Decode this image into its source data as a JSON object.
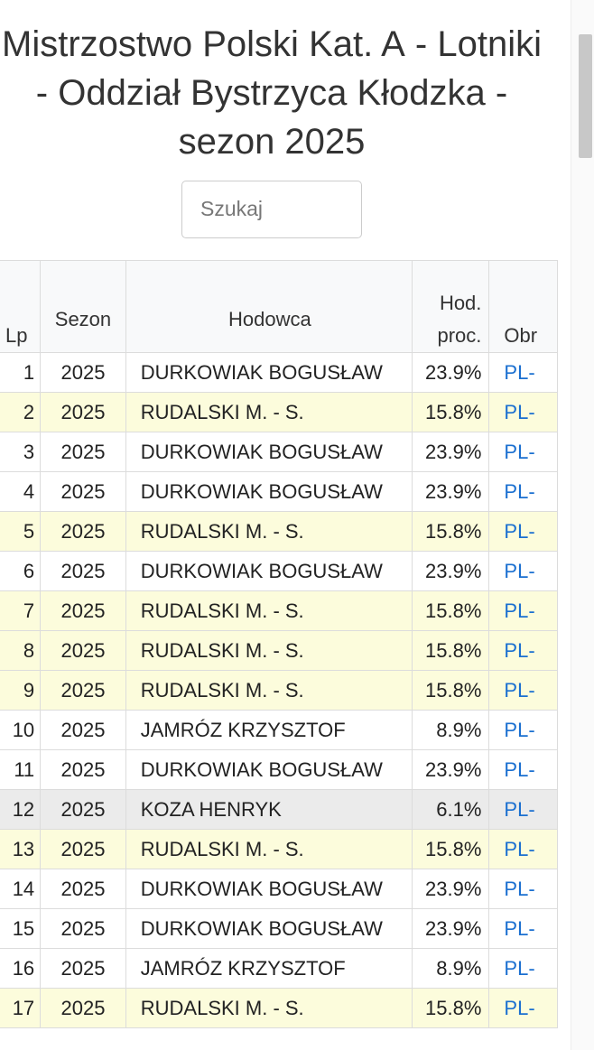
{
  "header": {
    "title": {
      "part1": "Mistrzostwo Polski ",
      "bold": "Kat. A",
      "part2": " - Lotniki - Oddział Bystrzyca Kłodzka - sezon 2025"
    }
  },
  "search": {
    "placeholder": "Szukaj"
  },
  "table": {
    "columns": [
      "Lp",
      "Sezon",
      "Hodowca",
      "Hod. proc.",
      "Obr"
    ],
    "rows": [
      {
        "cells": [
          1,
          2025,
          "DURKOWIAK BOGUSŁAW",
          "23.9%",
          "PL-"
        ],
        "color": "#ffffff"
      },
      {
        "cells": [
          2,
          2025,
          "RUDALSKI M. - S.",
          "15.8%",
          "PL-"
        ],
        "color": "#fcfcdc"
      },
      {
        "cells": [
          3,
          2025,
          "DURKOWIAK BOGUSŁAW",
          "23.9%",
          "PL-"
        ],
        "color": "#ffffff"
      },
      {
        "cells": [
          4,
          2025,
          "DURKOWIAK BOGUSŁAW",
          "23.9%",
          "PL-"
        ],
        "color": "#ffffff"
      },
      {
        "cells": [
          5,
          2025,
          "RUDALSKI M. - S.",
          "15.8%",
          "PL-"
        ],
        "color": "#fcfcdc"
      },
      {
        "cells": [
          6,
          2025,
          "DURKOWIAK BOGUSŁAW",
          "23.9%",
          "PL-"
        ],
        "color": "#ffffff"
      },
      {
        "cells": [
          7,
          2025,
          "RUDALSKI M. - S.",
          "15.8%",
          "PL-"
        ],
        "color": "#fcfcdc"
      },
      {
        "cells": [
          8,
          2025,
          "RUDALSKI M. - S.",
          "15.8%",
          "PL-"
        ],
        "color": "#fcfcdc"
      },
      {
        "cells": [
          9,
          2025,
          "RUDALSKI M. - S.",
          "15.8%",
          "PL-"
        ],
        "color": "#fcfcdc"
      },
      {
        "cells": [
          10,
          2025,
          "JAMRÓZ KRZYSZTOF",
          "8.9%",
          "PL-"
        ],
        "color": "#ffffff"
      },
      {
        "cells": [
          11,
          2025,
          "DURKOWIAK BOGUSŁAW",
          "23.9%",
          "PL-"
        ],
        "color": "#ffffff"
      },
      {
        "cells": [
          12,
          2025,
          "KOZA HENRYK",
          "6.1%",
          "PL-"
        ],
        "color": "#ebebeb"
      },
      {
        "cells": [
          13,
          2025,
          "RUDALSKI M. - S.",
          "15.8%",
          "PL-"
        ],
        "color": "#fcfcdc"
      },
      {
        "cells": [
          14,
          2025,
          "DURKOWIAK BOGUSŁAW",
          "23.9%",
          "PL-"
        ],
        "color": "#ffffff"
      },
      {
        "cells": [
          15,
          2025,
          "DURKOWIAK BOGUSŁAW",
          "23.9%",
          "PL-"
        ],
        "color": "#ffffff"
      },
      {
        "cells": [
          16,
          2025,
          "JAMRÓZ KRZYSZTOF",
          "8.9%",
          "PL-"
        ],
        "color": "#ffffff"
      },
      {
        "cells": [
          17,
          2025,
          "RUDALSKI M. - S.",
          "15.8%",
          "PL-"
        ],
        "color": "#fcfcdc"
      }
    ]
  }
}
